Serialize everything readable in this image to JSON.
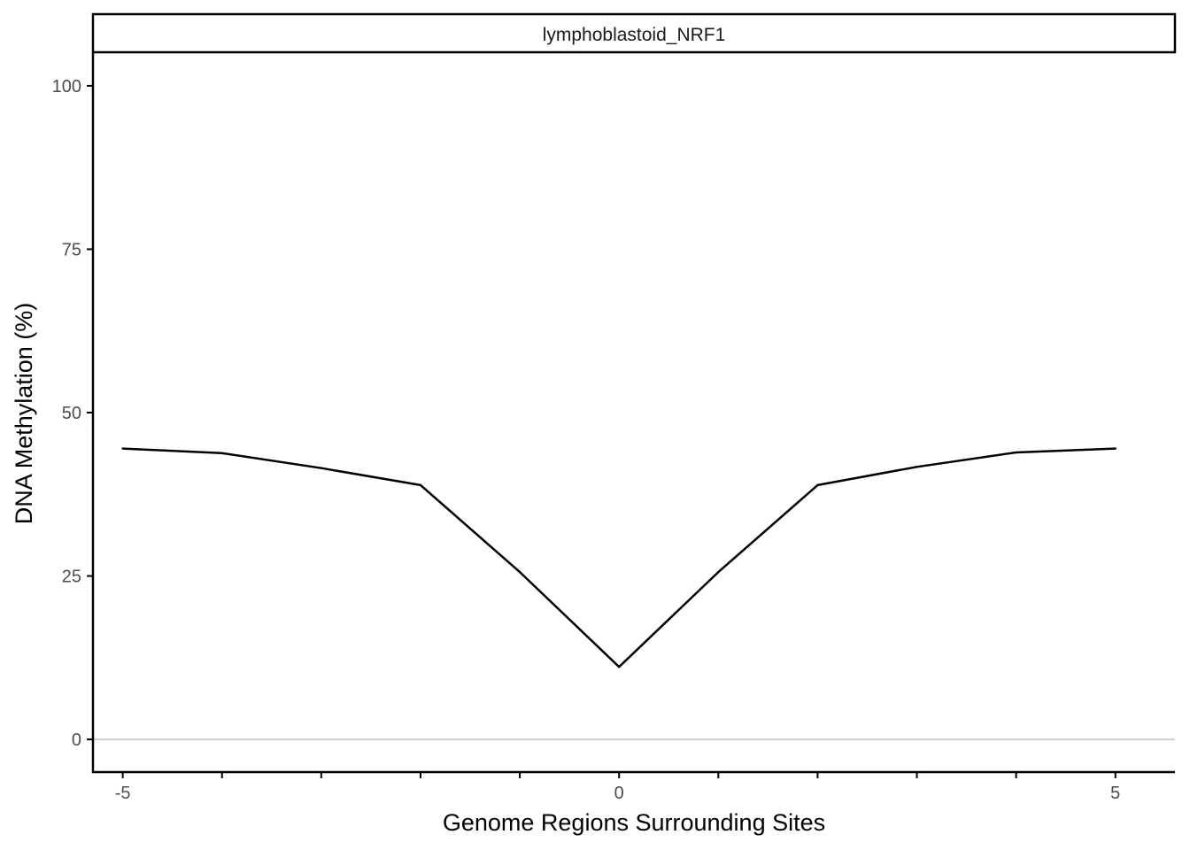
{
  "chart_data": {
    "type": "line",
    "facet_label": "lymphoblastoid_NRF1",
    "xlabel": "Genome Regions Surrounding Sites",
    "ylabel": "DNA Methylation (%)",
    "xlim": [
      -5.3,
      5.6
    ],
    "ylim": [
      -5,
      105
    ],
    "x_ticks": [
      -5,
      -4,
      -3,
      -2,
      -1,
      0,
      1,
      2,
      3,
      4,
      5
    ],
    "x_tick_labels": [
      "-5",
      "",
      "",
      "",
      "",
      "0",
      "",
      "",
      "",
      "",
      "5"
    ],
    "y_ticks": [
      0,
      25,
      50,
      75,
      100
    ],
    "y_tick_labels": [
      "0",
      "25",
      "50",
      "75",
      "100"
    ],
    "reference_line_y": 0,
    "grid": false,
    "series": [
      {
        "x": [
          -5,
          -4,
          -3,
          -2,
          -1,
          0,
          1,
          2,
          3,
          4,
          5
        ],
        "y": [
          44.5,
          43.8,
          41.5,
          38.9,
          25.6,
          11.1,
          25.6,
          38.9,
          41.7,
          43.9,
          44.5
        ]
      }
    ],
    "colors": {
      "line": "#000000",
      "reference_line": "#cccccc",
      "axis": "#000000",
      "tick_label": "#4d4d4d"
    }
  }
}
